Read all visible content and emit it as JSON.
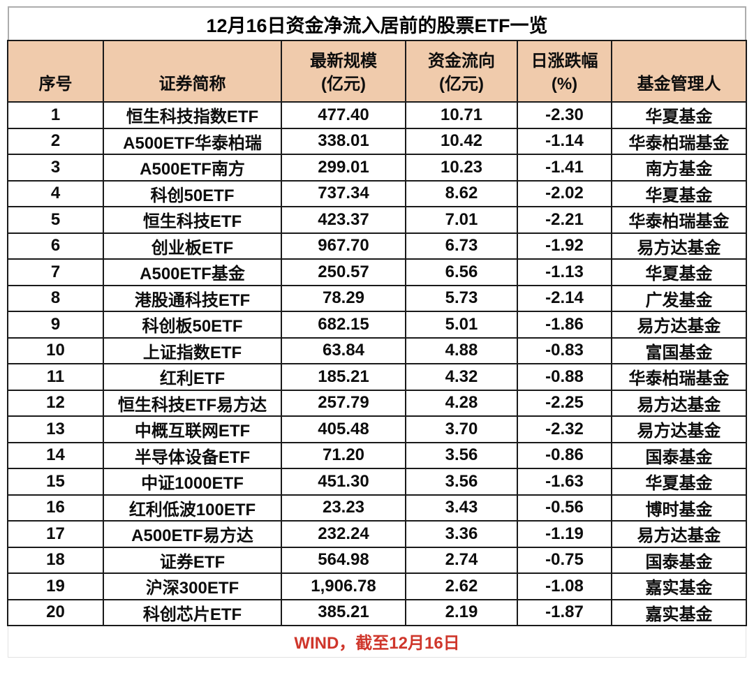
{
  "title": "12月16日资金净流入居前的股票ETF一览",
  "header": {
    "labels": [
      "序号",
      "证券简称",
      "最新规模\n(亿元)",
      "资金流向\n(亿元)",
      "日涨跌幅\n(%)",
      "基金管理人"
    ]
  },
  "footer": {
    "source": "WIND，截至12月16日"
  },
  "colors": {
    "header_bg": "#F0CBAC",
    "border": "#1A1A1A",
    "title_border": "#ADADAD",
    "source_red": "#CF362B",
    "text": "#0D0D0D"
  },
  "chart_data": {
    "type": "table",
    "title": "12月16日资金净流入居前的股票ETF一览",
    "columns": [
      "序号",
      "证券简称",
      "最新规模(亿元)",
      "资金流向(亿元)",
      "日涨跌幅(%)",
      "基金管理人"
    ],
    "rows": [
      [
        "1",
        "恒生科技指数ETF",
        "477.40",
        "10.71",
        "-2.30",
        "华夏基金"
      ],
      [
        "2",
        "A500ETF华泰柏瑞",
        "338.01",
        "10.42",
        "-1.14",
        "华泰柏瑞基金"
      ],
      [
        "3",
        "A500ETF南方",
        "299.01",
        "10.23",
        "-1.41",
        "南方基金"
      ],
      [
        "4",
        "科创50ETF",
        "737.34",
        "8.62",
        "-2.02",
        "华夏基金"
      ],
      [
        "5",
        "恒生科技ETF",
        "423.37",
        "7.01",
        "-2.21",
        "华泰柏瑞基金"
      ],
      [
        "6",
        "创业板ETF",
        "967.70",
        "6.73",
        "-1.92",
        "易方达基金"
      ],
      [
        "7",
        "A500ETF基金",
        "250.57",
        "6.56",
        "-1.13",
        "华夏基金"
      ],
      [
        "8",
        "港股通科技ETF",
        "78.29",
        "5.73",
        "-2.14",
        "广发基金"
      ],
      [
        "9",
        "科创板50ETF",
        "682.15",
        "5.01",
        "-1.86",
        "易方达基金"
      ],
      [
        "10",
        "上证指数ETF",
        "63.84",
        "4.88",
        "-0.83",
        "富国基金"
      ],
      [
        "11",
        "红利ETF",
        "185.21",
        "4.32",
        "-0.88",
        "华泰柏瑞基金"
      ],
      [
        "12",
        "恒生科技ETF易方达",
        "257.79",
        "4.28",
        "-2.25",
        "易方达基金"
      ],
      [
        "13",
        "中概互联网ETF",
        "405.48",
        "3.70",
        "-2.32",
        "易方达基金"
      ],
      [
        "14",
        "半导体设备ETF",
        "71.20",
        "3.56",
        "-0.86",
        "国泰基金"
      ],
      [
        "15",
        "中证1000ETF",
        "451.30",
        "3.56",
        "-1.63",
        "华夏基金"
      ],
      [
        "16",
        "红利低波100ETF",
        "23.23",
        "3.43",
        "-0.56",
        "博时基金"
      ],
      [
        "17",
        "A500ETF易方达",
        "232.24",
        "3.36",
        "-1.19",
        "易方达基金"
      ],
      [
        "18",
        "证券ETF",
        "564.98",
        "2.74",
        "-0.75",
        "国泰基金"
      ],
      [
        "19",
        "沪深300ETF",
        "1,906.78",
        "2.62",
        "-1.08",
        "嘉实基金"
      ],
      [
        "20",
        "科创芯片ETF",
        "385.21",
        "2.19",
        "-1.87",
        "嘉实基金"
      ]
    ],
    "source_note": "WIND，截至12月16日"
  }
}
